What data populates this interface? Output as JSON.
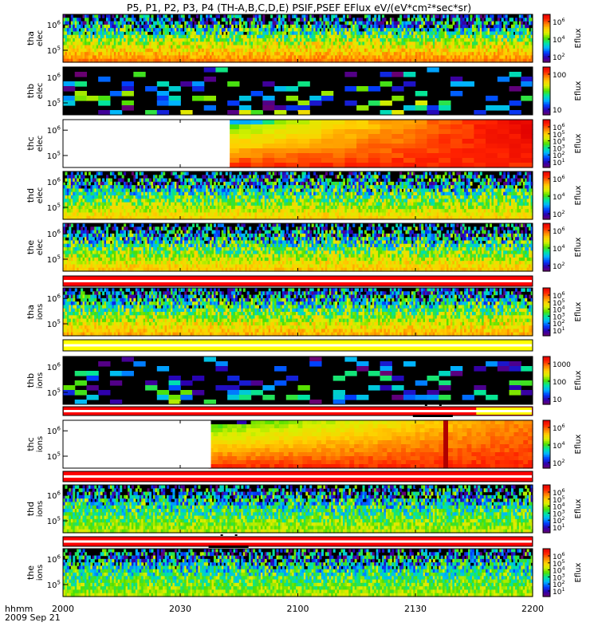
{
  "title": "P5, P1, P2, P3, P4 (TH-A,B,C,D,E) PSIF,PSEF EFlux eV/(eV*cm²*sec*sr)",
  "x_axis": {
    "corner_label_1": "hhmm",
    "corner_label_2": "2009 Sep 21",
    "ticks": [
      "2000",
      "2030",
      "2100",
      "2130",
      "2200"
    ]
  },
  "colorbar_label": "Eflux",
  "colors": {
    "rainbow": [
      "#6a0070",
      "#2a00b0",
      "#0040ff",
      "#00b4ff",
      "#00e6a0",
      "#50e000",
      "#d8f000",
      "#ffd000",
      "#ff8000",
      "#ff2000",
      "#e00000"
    ],
    "flag_red": "#ff0000",
    "flag_yellow": "#ffff00",
    "flag_white": "#ffffff",
    "bar_black": "#000000"
  },
  "chart_data": [
    {
      "type": "heatmap",
      "name": "tha elec",
      "ylabel": [
        "tha",
        "elec"
      ],
      "yscale": "log",
      "yticks": [
        [
          "10",
          "6"
        ],
        [
          "10",
          "5"
        ]
      ],
      "colorbar": {
        "ticks": [
          [
            "10",
            "6"
          ],
          [
            "10",
            "4"
          ],
          [
            "10",
            "2"
          ]
        ]
      },
      "pattern": "uniform",
      "gap": [
        0,
        0
      ],
      "ztop": 0.12,
      "zbottom": 0.82,
      "noise_top": 0.35,
      "noise_bottom": 0.03,
      "dropout_top": 0.4,
      "bins_x": 240,
      "bins_y": 14
    },
    {
      "type": "heatmap",
      "name": "thb elec",
      "ylabel": [
        "thb",
        "elec"
      ],
      "yscale": "log",
      "yticks": [
        [
          "10",
          "6"
        ],
        [
          "10",
          "5"
        ]
      ],
      "colorbar": {
        "ticks": [
          [
            "100",
            ""
          ],
          [
            "10",
            ""
          ]
        ]
      },
      "pattern": "sparse",
      "gap": [
        0,
        0
      ],
      "ztop": 0.1,
      "zbottom": 0.35,
      "noise_top": 0.35,
      "noise_bottom": 0.3,
      "dropout_top": 0.55,
      "bins_x": 40,
      "bins_y": 10
    },
    {
      "type": "heatmap",
      "name": "thc elec",
      "ylabel": [
        "thc",
        "elec"
      ],
      "yscale": "log",
      "yticks": [
        [
          "10",
          "6"
        ],
        [
          "10",
          "5"
        ]
      ],
      "colorbar": {
        "ticks": [
          [
            "10",
            "6"
          ],
          [
            "10",
            "5"
          ],
          [
            "10",
            "4"
          ],
          [
            "10",
            "3"
          ],
          [
            "10",
            "2"
          ],
          [
            "10",
            "1"
          ]
        ]
      },
      "pattern": "thc_elec",
      "gap": [
        0,
        0.355
      ],
      "ztop": 0.55,
      "zbottom": 0.95,
      "noise_top": 0.05,
      "noise_bottom": 0.03,
      "dropout_top": 0.02,
      "bins_x": 40,
      "bins_y": 10
    },
    {
      "type": "heatmap",
      "name": "thd elec",
      "ylabel": [
        "thd",
        "elec"
      ],
      "yscale": "log",
      "yticks": [
        [
          "10",
          "6"
        ],
        [
          "10",
          "5"
        ]
      ],
      "colorbar": {
        "ticks": [
          [
            "10",
            "6"
          ],
          [
            "10",
            "4"
          ],
          [
            "10",
            "2"
          ]
        ]
      },
      "pattern": "uniform",
      "gap": [
        0,
        0
      ],
      "ztop": 0.12,
      "zbottom": 0.7,
      "noise_top": 0.4,
      "noise_bottom": 0.04,
      "dropout_top": 0.45,
      "bins_x": 240,
      "bins_y": 14
    },
    {
      "type": "heatmap",
      "name": "the elec",
      "ylabel": [
        "the",
        "elec"
      ],
      "yscale": "log",
      "yticks": [
        [
          "10",
          "6"
        ],
        [
          "10",
          "5"
        ]
      ],
      "colorbar": {
        "ticks": [
          [
            "10",
            "6"
          ],
          [
            "10",
            "4"
          ],
          [
            "10",
            "2"
          ]
        ]
      },
      "pattern": "uniform",
      "gap": [
        0,
        0
      ],
      "ztop": 0.12,
      "zbottom": 0.72,
      "noise_top": 0.4,
      "noise_bottom": 0.04,
      "dropout_top": 0.45,
      "bins_x": 240,
      "bins_y": 14
    },
    {
      "type": "heatmap",
      "name": "tha ions",
      "ylabel": [
        "tha",
        "ions"
      ],
      "yscale": "log",
      "yticks": [
        [
          "10",
          "6"
        ],
        [
          "10",
          "5"
        ]
      ],
      "colorbar": {
        "ticks": [
          [
            "10",
            "6"
          ],
          [
            "10",
            "5"
          ],
          [
            "10",
            "4"
          ],
          [
            "10",
            "3"
          ],
          [
            "10",
            "2"
          ],
          [
            "10",
            "1"
          ]
        ]
      },
      "pattern": "uniform",
      "gap": [
        0,
        0
      ],
      "ztop": 0.15,
      "zbottom": 0.75,
      "noise_top": 0.35,
      "noise_bottom": 0.05,
      "dropout_top": 0.35,
      "bins_x": 240,
      "bins_y": 14
    },
    {
      "type": "heatmap",
      "name": "thb ions",
      "ylabel": [
        "thb",
        "ions"
      ],
      "yscale": "log",
      "yticks": [
        [
          "10",
          "6"
        ],
        [
          "10",
          "5"
        ]
      ],
      "colorbar": {
        "ticks": [
          [
            "1000",
            ""
          ],
          [
            "100",
            ""
          ],
          [
            "10",
            ""
          ]
        ]
      },
      "pattern": "sparse",
      "gap": [
        0,
        0
      ],
      "ztop": 0.05,
      "zbottom": 0.3,
      "noise_top": 0.3,
      "noise_bottom": 0.3,
      "dropout_top": 0.5,
      "bins_x": 40,
      "bins_y": 10
    },
    {
      "type": "heatmap",
      "name": "thc ions",
      "ylabel": [
        "thc",
        "ions"
      ],
      "yscale": "log",
      "yticks": [
        [
          "10",
          "6"
        ],
        [
          "10",
          "5"
        ]
      ],
      "colorbar": {
        "ticks": [
          [
            "10",
            "6"
          ],
          [
            "10",
            "4"
          ],
          [
            "10",
            "2"
          ]
        ]
      },
      "pattern": "thc_ions",
      "gap": [
        0,
        0.315
      ],
      "ztop": 0.55,
      "zbottom": 0.92,
      "noise_top": 0.06,
      "noise_bottom": 0.03,
      "dropout_top": 0.02,
      "bins_x": 100,
      "bins_y": 12
    },
    {
      "type": "heatmap",
      "name": "thd ions",
      "ylabel": [
        "thd",
        "ions"
      ],
      "yscale": "log",
      "yticks": [
        [
          "10",
          "6"
        ],
        [
          "10",
          "5"
        ]
      ],
      "colorbar": {
        "ticks": [
          [
            "10",
            "6"
          ],
          [
            "10",
            "5"
          ],
          [
            "10",
            "4"
          ],
          [
            "10",
            "3"
          ],
          [
            "10",
            "2"
          ],
          [
            "10",
            "1"
          ]
        ]
      },
      "pattern": "uniform",
      "gap": [
        0,
        0
      ],
      "ztop": 0.2,
      "zbottom": 0.58,
      "noise_top": 0.35,
      "noise_bottom": 0.06,
      "dropout_top": 0.5,
      "bins_x": 240,
      "bins_y": 14
    },
    {
      "type": "heatmap",
      "name": "the ions",
      "ylabel": [
        "the",
        "ions"
      ],
      "yscale": "log",
      "yticks": [
        [
          "10",
          "6"
        ],
        [
          "10",
          "5"
        ]
      ],
      "colorbar": {
        "ticks": [
          [
            "10",
            "6"
          ],
          [
            "10",
            "5"
          ],
          [
            "10",
            "4"
          ],
          [
            "10",
            "3"
          ],
          [
            "10",
            "2"
          ],
          [
            "10",
            "1"
          ]
        ]
      },
      "pattern": "uniform",
      "gap": [
        0,
        0
      ],
      "ztop": 0.2,
      "zbottom": 0.58,
      "noise_top": 0.35,
      "noise_bottom": 0.06,
      "dropout_top": 0.5,
      "bins_x": 240,
      "bins_y": 14
    }
  ],
  "flag_bars": [
    {
      "name": "flag-bar-1",
      "color": "red",
      "marks": []
    },
    {
      "name": "flag-bar-2",
      "color": "yellow",
      "marks": []
    },
    {
      "name": "flag-bar-3",
      "color": "split",
      "split_at": 0.88,
      "marks": [
        {
          "from": 0.745,
          "to": 0.83
        }
      ]
    },
    {
      "name": "flag-bar-4",
      "color": "red",
      "marks": []
    },
    {
      "name": "flag-bar-5",
      "color": "red",
      "marks": [
        {
          "from": 0.31,
          "to": 0.395
        }
      ]
    }
  ]
}
